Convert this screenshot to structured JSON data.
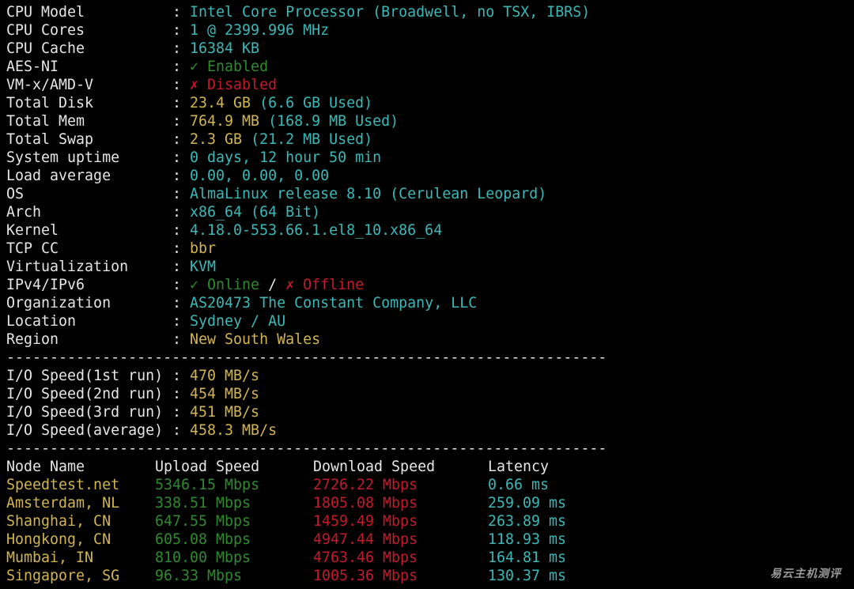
{
  "info": [
    {
      "label": "CPU Model",
      "value": [
        {
          "t": "Intel Core Processor (Broadwell, no TSX, IBRS)",
          "c": "cyan"
        }
      ]
    },
    {
      "label": "CPU Cores",
      "value": [
        {
          "t": "1 @ 2399.996 MHz",
          "c": "cyan"
        }
      ]
    },
    {
      "label": "CPU Cache",
      "value": [
        {
          "t": "16384 KB",
          "c": "cyan"
        }
      ]
    },
    {
      "label": "AES-NI",
      "value": [
        {
          "t": "✓ Enabled",
          "c": "green"
        }
      ]
    },
    {
      "label": "VM-x/AMD-V",
      "value": [
        {
          "t": "✗ Disabled",
          "c": "red"
        }
      ]
    },
    {
      "label": "Total Disk",
      "value": [
        {
          "t": "23.4 GB",
          "c": "yellow"
        },
        {
          "t": " (6.6 GB Used)",
          "c": "cyan"
        }
      ]
    },
    {
      "label": "Total Mem",
      "value": [
        {
          "t": "764.9 MB",
          "c": "yellow"
        },
        {
          "t": " (168.9 MB Used)",
          "c": "cyan"
        }
      ]
    },
    {
      "label": "Total Swap",
      "value": [
        {
          "t": "2.3 GB",
          "c": "yellow"
        },
        {
          "t": " (21.2 MB Used)",
          "c": "cyan"
        }
      ]
    },
    {
      "label": "System uptime",
      "value": [
        {
          "t": "0 days, 12 hour 50 min",
          "c": "cyan"
        }
      ]
    },
    {
      "label": "Load average",
      "value": [
        {
          "t": "0.00, 0.00, 0.00",
          "c": "cyan"
        }
      ]
    },
    {
      "label": "OS",
      "value": [
        {
          "t": "AlmaLinux release 8.10 (Cerulean Leopard)",
          "c": "cyan"
        }
      ]
    },
    {
      "label": "Arch",
      "value": [
        {
          "t": "x86_64 (64 Bit)",
          "c": "cyan"
        }
      ]
    },
    {
      "label": "Kernel",
      "value": [
        {
          "t": "4.18.0-553.66.1.el8_10.x86_64",
          "c": "cyan"
        }
      ]
    },
    {
      "label": "TCP CC",
      "value": [
        {
          "t": "bbr",
          "c": "yellow"
        }
      ]
    },
    {
      "label": "Virtualization",
      "value": [
        {
          "t": "KVM",
          "c": "cyan"
        }
      ]
    },
    {
      "label": "IPv4/IPv6",
      "value": [
        {
          "t": "✓ Online",
          "c": "green"
        },
        {
          "t": " / ",
          "c": "white"
        },
        {
          "t": "✗ Offline",
          "c": "red"
        }
      ]
    },
    {
      "label": "Organization",
      "value": [
        {
          "t": "AS20473 The Constant Company, LLC",
          "c": "cyan"
        }
      ]
    },
    {
      "label": "Location",
      "value": [
        {
          "t": "Sydney / AU",
          "c": "cyan"
        }
      ]
    },
    {
      "label": "Region",
      "value": [
        {
          "t": "New South Wales",
          "c": "yellow"
        }
      ]
    }
  ],
  "separator": "---------------------------------------------------------------------",
  "io": [
    {
      "label": "I/O Speed(1st run)",
      "value": "470 MB/s"
    },
    {
      "label": "I/O Speed(2nd run)",
      "value": "454 MB/s"
    },
    {
      "label": "I/O Speed(3rd run)",
      "value": "451 MB/s"
    },
    {
      "label": "I/O Speed(average)",
      "value": "458.3 MB/s"
    }
  ],
  "speed": {
    "headers": [
      "Node Name",
      "Upload Speed",
      "Download Speed",
      "Latency"
    ],
    "rows": [
      [
        "Speedtest.net",
        "5346.15 Mbps",
        "2726.22 Mbps",
        "0.66 ms"
      ],
      [
        "Amsterdam, NL",
        "338.51 Mbps",
        "1805.08 Mbps",
        "259.09 ms"
      ],
      [
        "Shanghai, CN",
        "647.55 Mbps",
        "1459.49 Mbps",
        "263.89 ms"
      ],
      [
        "Hongkong, CN",
        "605.08 Mbps",
        "4947.44 Mbps",
        "118.93 ms"
      ],
      [
        "Mumbai, IN",
        "810.00 Mbps",
        "4763.46 Mbps",
        "164.81 ms"
      ],
      [
        "Singapore, SG",
        "96.33 Mbps",
        "1005.36 Mbps",
        "130.37 ms"
      ]
    ]
  },
  "colors": {
    "white": "#e6e6e6",
    "cyan": "#3bb8b8",
    "green": "#2f8a2f",
    "red": "#c41a2a",
    "yellow": "#d2b450"
  },
  "watermark": "易云主机测评"
}
